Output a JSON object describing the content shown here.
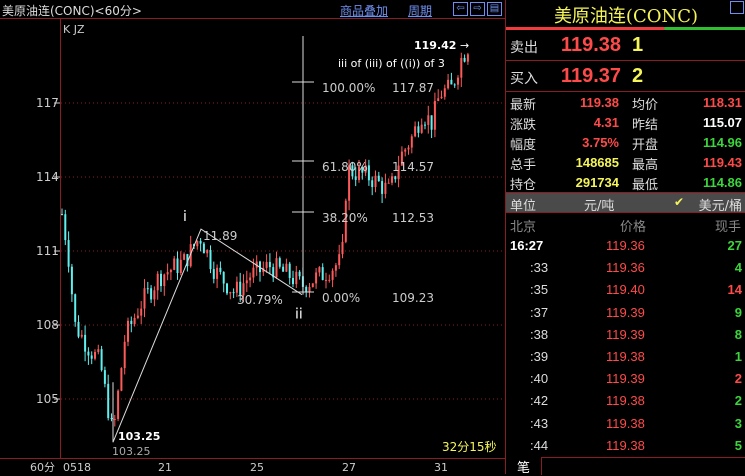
{
  "header": {
    "title": "美原油连(CONC)<60分>",
    "overlay_link": "商品叠加",
    "period_link": "周期",
    "nav_icons": [
      "arrow-left-icon",
      "arrow-right-icon",
      "panel-icon"
    ]
  },
  "chart": {
    "indicator_label": "K JZ",
    "y_ticks": [
      "117",
      "114",
      "111",
      "108",
      "105"
    ],
    "x_ticks": [
      "0518",
      "21",
      "25",
      "27",
      "31"
    ],
    "period_label": "60分",
    "countdown": "32分15秒",
    "wave_labels": {
      "i": "i",
      "ii": "ii",
      "wave_note": "iii of (iii) of ((i)) of 3"
    },
    "annotations": {
      "high": "119.42",
      "low_bold": "103.25",
      "low": "103.25",
      "i_value": "11.89",
      "retrace": "30.79%"
    },
    "fib": [
      {
        "pct": "100.00%",
        "value": "117.87"
      },
      {
        "pct": "61.80%",
        "value": "114.57"
      },
      {
        "pct": "38.20%",
        "value": "112.53"
      },
      {
        "pct": "0.00%",
        "value": "109.23"
      }
    ],
    "colors": {
      "up": "#ff5a5a",
      "down": "#5ff0f0",
      "grid": "#8a1c24"
    }
  },
  "chart_data": {
    "type": "candlestick",
    "y_ticks": [
      117,
      114,
      111,
      108,
      105
    ],
    "x_ticks": [
      "0518",
      "21",
      "25",
      "27",
      "31"
    ],
    "key_points": [
      {
        "label": "start",
        "price": 112.5
      },
      {
        "label": "low",
        "price": 103.25
      },
      {
        "label": "i",
        "price": 111.89
      },
      {
        "label": "ii",
        "price": 109.23
      },
      {
        "label": "high",
        "price": 119.42
      }
    ]
  },
  "quote": {
    "name": "美原油连(CONC)",
    "sell_label": "卖出",
    "sell_price": "119.38",
    "sell_vol": "1",
    "buy_label": "买入",
    "buy_price": "119.37",
    "buy_vol": "2",
    "stats": [
      {
        "l1": "最新",
        "v1": "119.38",
        "c1": "red",
        "l2": "均价",
        "v2": "118.31",
        "c2": "red"
      },
      {
        "l1": "涨跌",
        "v1": "4.31",
        "c1": "red",
        "l2": "昨结",
        "v2": "115.07",
        "c2": "white"
      },
      {
        "l1": "幅度",
        "v1": "3.75%",
        "c1": "red",
        "l2": "开盘",
        "v2": "114.96",
        "c2": "green"
      },
      {
        "l1": "总手",
        "v1": "148685",
        "c1": "yellow",
        "l2": "最高",
        "v2": "119.43",
        "c2": "red"
      },
      {
        "l1": "持仓",
        "v1": "291734",
        "c1": "yellow",
        "l2": "最低",
        "v2": "114.86",
        "c2": "green"
      }
    ],
    "unit_label": "单位",
    "unit_opt1": "元/吨",
    "unit_opt2": "美元/桶",
    "unit_selected": "美元/桶",
    "col_time": "北京",
    "col_price": "价格",
    "col_vol": "现手",
    "trades": [
      {
        "t": "16:27",
        "p": "119.36",
        "v": "27",
        "vc": "green"
      },
      {
        "t": ":33",
        "p": "119.36",
        "v": "4",
        "vc": "green"
      },
      {
        "t": ":35",
        "p": "119.40",
        "v": "14",
        "vc": "red"
      },
      {
        "t": ":37",
        "p": "119.39",
        "v": "9",
        "vc": "green"
      },
      {
        "t": ":38",
        "p": "119.39",
        "v": "8",
        "vc": "green"
      },
      {
        "t": ":39",
        "p": "119.38",
        "v": "1",
        "vc": "green"
      },
      {
        "t": ":40",
        "p": "119.39",
        "v": "2",
        "vc": "red"
      },
      {
        "t": ":42",
        "p": "119.38",
        "v": "2",
        "vc": "green"
      },
      {
        "t": ":43",
        "p": "119.38",
        "v": "3",
        "vc": "green"
      },
      {
        "t": ":44",
        "p": "119.38",
        "v": "5",
        "vc": "green"
      }
    ],
    "tab_label": "笔"
  }
}
